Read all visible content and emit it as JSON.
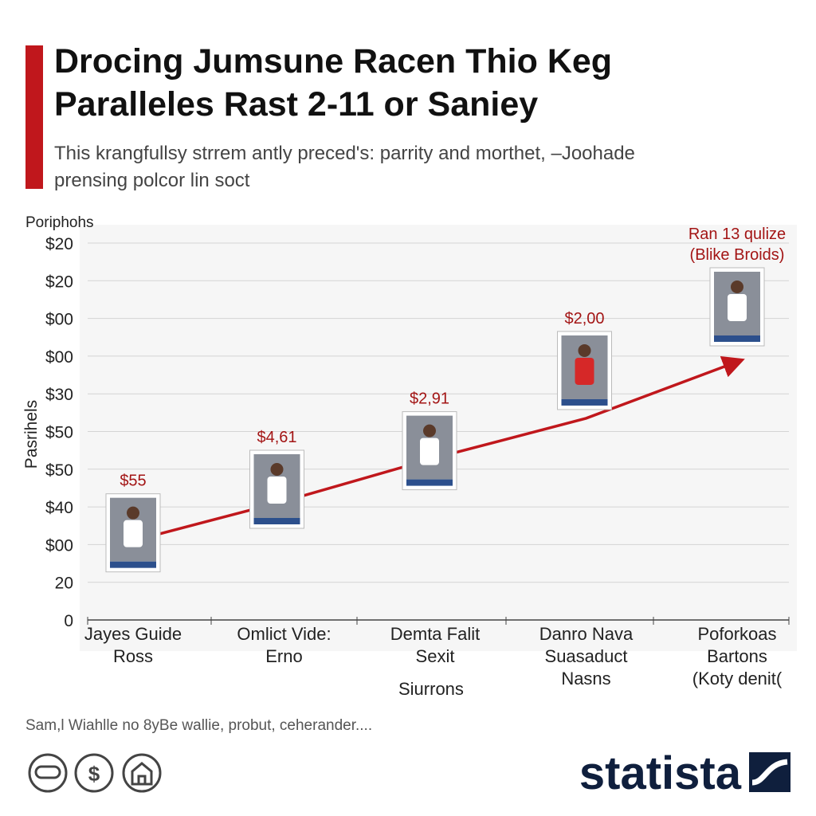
{
  "chart_data": {
    "type": "line",
    "title": "Drocing Jumsune Racen Thio Keg\nParalleles Rast 2-11 or Saniey",
    "subtitle": "This krangfullsy strrem antly preced's: parrity and morthet, –Joohade\nprensing polcor lin soct",
    "y_unit_label": "Poriphohs",
    "ylabel": "Pasrihels",
    "xlabel": "Siurrons",
    "categories": [
      "Jayes Guide\nRoss",
      "Omlict Vide:\nErno",
      "Demta Falit\nSexit",
      "Danro Nava\nSuasaduct\nNasns",
      "Poforkoas\nBartons\n(Koty denit("
    ],
    "values": [
      42,
      63,
      86,
      107,
      137
    ],
    "color": "#c0171c",
    "annotations": [
      "$55",
      "$4,61",
      "$2,91",
      "$2,00",
      "Ran 13 qulize\n(Blike Broids)"
    ],
    "ylim": [
      0,
      200
    ],
    "yticks": [
      0,
      20,
      {
        "value": 40,
        "label": "$00"
      },
      {
        "value": 60,
        "label": "$40"
      },
      {
        "value": 80,
        "label": "$50"
      },
      {
        "value": 100,
        "label": "$50"
      },
      {
        "value": 120,
        "label": "$30"
      },
      {
        "value": 140,
        "label": "$00"
      },
      {
        "value": 160,
        "label": "$00"
      },
      {
        "value": 180,
        "label": "$20"
      },
      {
        "value": 200,
        "label": "$20"
      }
    ],
    "grid": true,
    "source": "Sam,l Wiahlle no 8yBe wallie, probut, ceherander....",
    "icon_text": "$",
    "brand": "statista"
  }
}
